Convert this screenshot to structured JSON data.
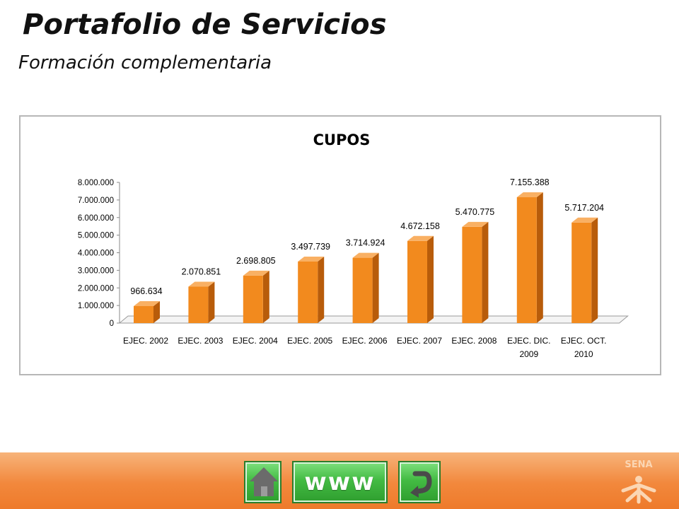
{
  "slide": {
    "title": "Portafolio de Servicios",
    "subtitle": "Formación complementaria"
  },
  "chart_data": {
    "type": "bar",
    "title": "CUPOS",
    "categories": [
      "EJEC. 2002",
      "EJEC. 2003",
      "EJEC. 2004",
      "EJEC. 2005",
      "EJEC. 2006",
      "EJEC. 2007",
      "EJEC. 2008",
      "EJEC. DIC. 2009",
      "EJEC. OCT. 2010"
    ],
    "values": [
      966634,
      2070851,
      2698805,
      3497739,
      3714924,
      4672158,
      5470775,
      7155388,
      5717204
    ],
    "value_labels": [
      "966.634",
      "2.070.851",
      "2.698.805",
      "3.497.739",
      "3.714.924",
      "4.672.158",
      "5.470.775",
      "7.155.388",
      "5.717.204"
    ],
    "ylim": [
      0,
      8000000
    ],
    "yticks": [
      {
        "value": 0,
        "label": "0"
      },
      {
        "value": 1000000,
        "label": "1.000.000"
      },
      {
        "value": 2000000,
        "label": "2.000.000"
      },
      {
        "value": 3000000,
        "label": "3.000.000"
      },
      {
        "value": 4000000,
        "label": "4.000.000"
      },
      {
        "value": 5000000,
        "label": "5.000.000"
      },
      {
        "value": 6000000,
        "label": "6.000.000"
      },
      {
        "value": 7000000,
        "label": "7.000.000"
      },
      {
        "value": 8000000,
        "label": "8.000.000"
      }
    ],
    "grid": false,
    "legend": "none",
    "bar_color": "#f28a1e",
    "bar_side_color": "#b85c0a",
    "bar_top_color": "#f9b063"
  },
  "footer": {
    "www_label": "www",
    "logo_text": "SENA",
    "color": "#f08333",
    "button_color": "#44bb44",
    "home_icon": "home-icon",
    "back_icon": "return-arrow-icon"
  }
}
